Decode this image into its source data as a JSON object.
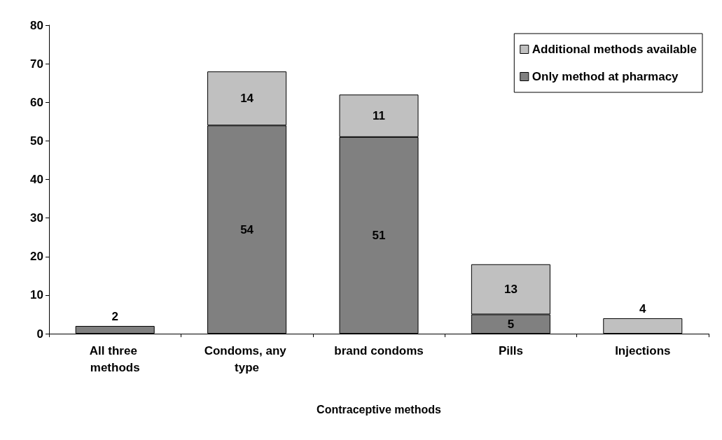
{
  "chart_data": {
    "type": "bar",
    "stacked": true,
    "xlabel": "Contraceptive methods",
    "categories": [
      "All three methods",
      "Condoms, any type",
      "brand condoms",
      "Pills",
      "Injections"
    ],
    "series": [
      {
        "name": "Only method at pharmacy",
        "color": "#808080",
        "values": [
          2,
          54,
          51,
          5,
          null
        ]
      },
      {
        "name": "Additional methods available",
        "color": "#c0c0c0",
        "values": [
          null,
          14,
          11,
          13,
          4
        ]
      }
    ],
    "ylim": [
      0,
      80
    ],
    "yticks": [
      0,
      10,
      20,
      30,
      40,
      50,
      60,
      70,
      80
    ],
    "data_labels": true,
    "legend": "top right",
    "grid": false
  }
}
